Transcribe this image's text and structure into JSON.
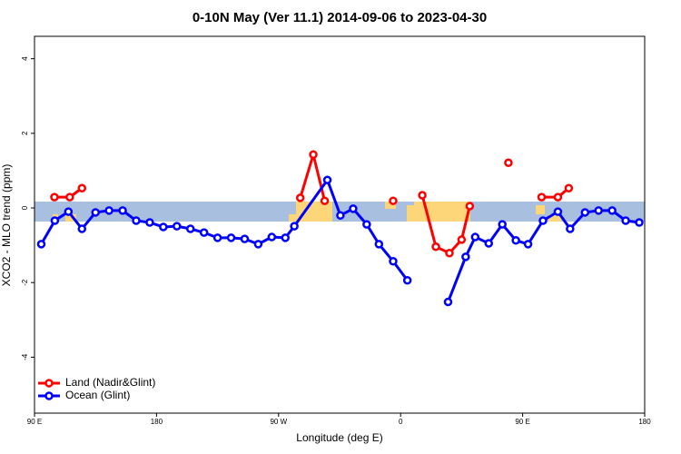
{
  "chart_data": {
    "type": "line",
    "title": "0-10N May (Ver 11.1)   2014-09-06 to 2023-04-30",
    "x_label": "Longitude (deg E)",
    "y_label": "XCO2 - MLO trend (ppm)",
    "xlim": [
      90,
      540
    ],
    "xticks": [
      {
        "value": 90,
        "label": "90 E"
      },
      {
        "value": 180,
        "label": "180"
      },
      {
        "value": 270,
        "label": "90 W"
      },
      {
        "value": 360,
        "label": "0"
      },
      {
        "value": 450,
        "label": "90 E"
      },
      {
        "value": 540,
        "label": "180"
      }
    ],
    "ylim": [
      -5.5,
      4.6
    ],
    "yticks": [
      -4,
      -2,
      0,
      2,
      4
    ],
    "legend": "bottom-left",
    "series": [
      {
        "name": "Land (Nadir&Glint)",
        "color": "#ff0000",
        "x": [
          104.7,
          116,
          125,
          200,
          286,
          295.6,
          304,
          330,
          354.5,
          365,
          376,
          386,
          396,
          405,
          411,
          425,
          439.5,
          450,
          464,
          476,
          484
        ],
        "values": [
          0.29,
          0.29,
          0.53,
          null,
          0.27,
          1.43,
          0.19,
          null,
          0.19,
          null,
          0.34,
          -1.04,
          -1.21,
          -0.85,
          0.05,
          null,
          1.21,
          null,
          0.29,
          0.29,
          0.53
        ]
      },
      {
        "name": "Ocean (Glint)",
        "color": "#0000ff",
        "x": [
          95,
          105,
          115,
          125,
          135,
          145,
          155,
          165,
          175,
          185,
          195,
          205,
          215,
          225,
          235,
          245,
          255,
          265,
          275,
          281.6,
          306,
          315.6,
          325,
          335,
          344,
          354.5,
          365,
          380,
          395,
          408,
          415,
          425,
          435,
          445,
          454,
          465,
          476,
          485,
          496,
          506,
          516,
          526,
          536
        ],
        "values": [
          -0.97,
          -0.34,
          -0.1,
          -0.56,
          -0.12,
          -0.07,
          -0.07,
          -0.34,
          -0.39,
          -0.51,
          -0.49,
          -0.56,
          -0.66,
          -0.8,
          -0.8,
          -0.83,
          -0.97,
          -0.78,
          -0.8,
          -0.49,
          0.75,
          -0.2,
          -0.02,
          -0.44,
          -0.97,
          -1.43,
          -1.94,
          null,
          -2.52,
          -1.31,
          -0.78,
          -0.95,
          -0.44,
          -0.87,
          -0.97,
          -0.34,
          -0.1,
          -0.56,
          -0.12,
          -0.07,
          -0.07,
          -0.34,
          -0.39
        ]
      }
    ]
  }
}
